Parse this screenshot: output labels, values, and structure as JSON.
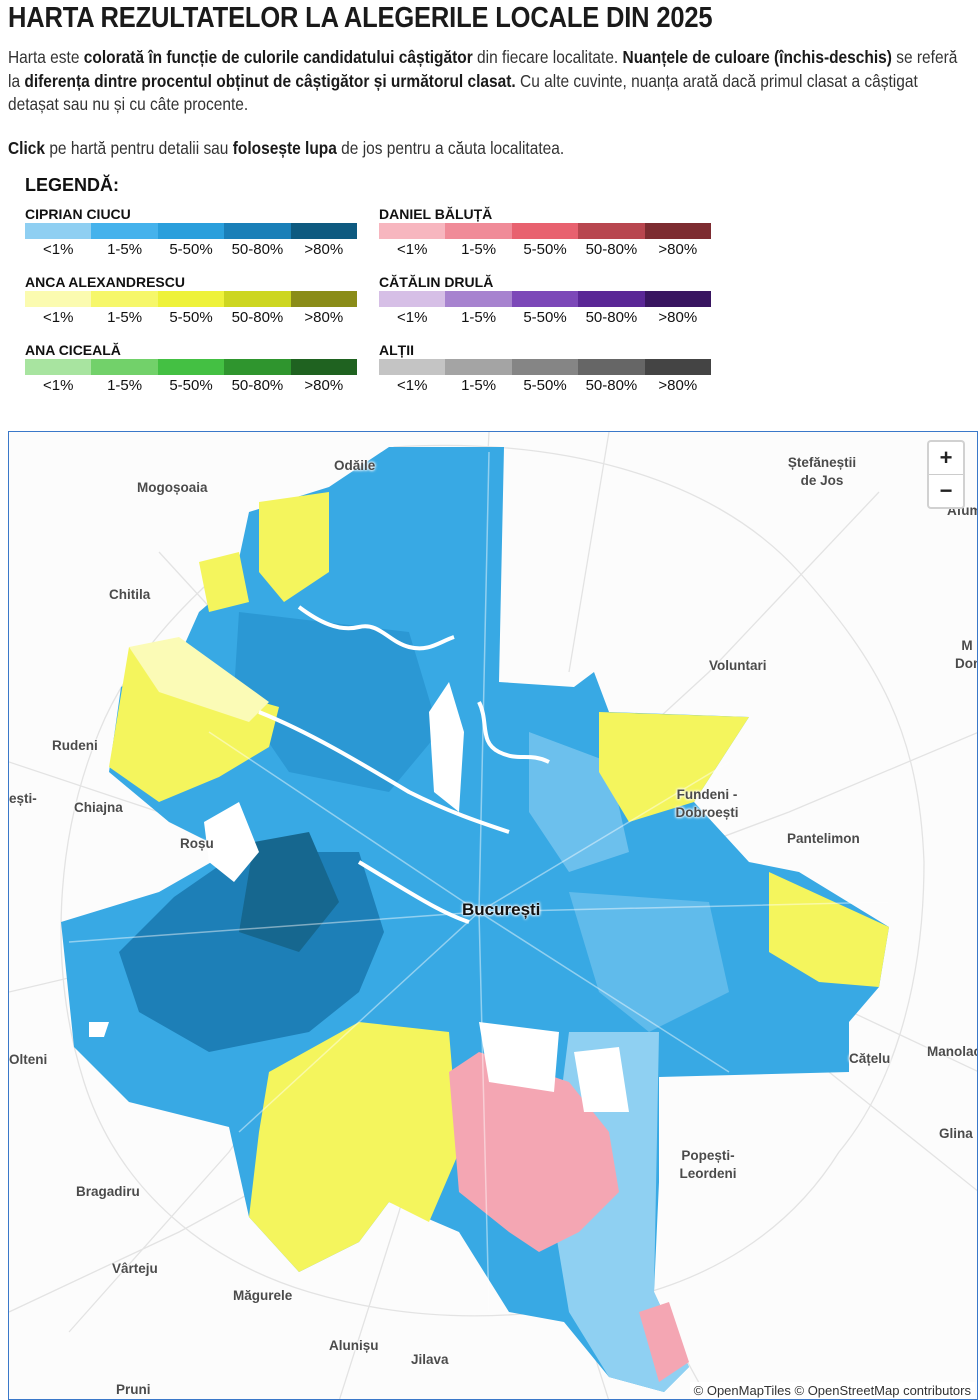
{
  "page": {
    "title": "HARTA REZULTATELOR LA ALEGERILE LOCALE DIN 2025",
    "intro": [
      {
        "t": "Harta este ",
        "b": false
      },
      {
        "t": "colorată în funcție de culorile candidatului câștigător",
        "b": true
      },
      {
        "t": " din fiecare localitate. ",
        "b": false
      },
      {
        "t": "Nuanțele de culoare (închis-deschis)",
        "b": true
      },
      {
        "t": " se referă la ",
        "b": false
      },
      {
        "t": "diferența dintre procentul obținut de câștigător și următorul clasat.",
        "b": true
      },
      {
        "t": " Cu alte cuvinte, nuanța arată dacă primul clasat a câștigat detașat sau nu și cu câte procente.",
        "b": false
      }
    ],
    "click_line": [
      {
        "t": "Click",
        "b": true
      },
      {
        "t": " pe hartă pentru detalii sau ",
        "b": false
      },
      {
        "t": "folosește lupa",
        "b": true
      },
      {
        "t": " de jos pentru a căuta localitatea.",
        "b": false
      }
    ]
  },
  "legend": {
    "title": "LEGENDĂ:",
    "bins": [
      "<1%",
      "1-5%",
      "5-50%",
      "50-80%",
      ">80%"
    ],
    "candidates": [
      {
        "id": "ciucu",
        "name": "CIPRIAN CIUCU",
        "colors": [
          "#8fcff2",
          "#45b2ec",
          "#2a9fdc",
          "#1a7fb8",
          "#0e5a80"
        ]
      },
      {
        "id": "baluta",
        "name": "DANIEL BĂLUȚĂ",
        "colors": [
          "#f7b6bf",
          "#f08b98",
          "#e8616f",
          "#b8464f",
          "#7d2c31"
        ]
      },
      {
        "id": "alexandrescu",
        "name": "ANCA ALEXANDRESCU",
        "colors": [
          "#fbfbb0",
          "#f6f76a",
          "#eef23a",
          "#cdd620",
          "#8a8c18"
        ]
      },
      {
        "id": "drula",
        "name": "CĂTĂLIN DRULĂ",
        "colors": [
          "#d6bfe6",
          "#a783cf",
          "#7c48b8",
          "#5a2796",
          "#381560"
        ]
      },
      {
        "id": "ciceala",
        "name": "ANA CICEALĂ",
        "colors": [
          "#a8e4a0",
          "#72d16a",
          "#44c043",
          "#2f952e",
          "#1f6220"
        ]
      },
      {
        "id": "altii",
        "name": "ALȚII",
        "colors": [
          "#c4c4c4",
          "#a4a4a4",
          "#858585",
          "#666666",
          "#444444"
        ]
      }
    ]
  },
  "map": {
    "center_label": "București",
    "places": [
      "Odăile",
      "Ștefăneștii de Jos",
      "Mogoșoaia",
      "Afum",
      "Chitila",
      "Voluntari",
      "M Don",
      "Rudeni",
      "ești-",
      "Chiajna",
      "Fundeni - Dobroești",
      "Roșu",
      "Pantelimon",
      "Olteni",
      "Cățelu",
      "Manolac",
      "Glina",
      "Popești-Leordeni",
      "Bragadiru",
      "Vârteju",
      "Măgurele",
      "Alunișu",
      "Jilava",
      "Pruni"
    ],
    "zoom_in": "+",
    "zoom_out": "−",
    "attribution": "© OpenMapTiles © OpenStreetMap contributors"
  },
  "colors": {
    "ciucu_main": "#36a8e3",
    "ciucu_dark": "#1b7cb4",
    "ciucu_light": "#8fd0f2",
    "alexandrescu": "#f4f561",
    "alexandrescu_light": "#fbfbb6",
    "baluta": "#f3a3b0",
    "frame": "#3a78c9"
  }
}
